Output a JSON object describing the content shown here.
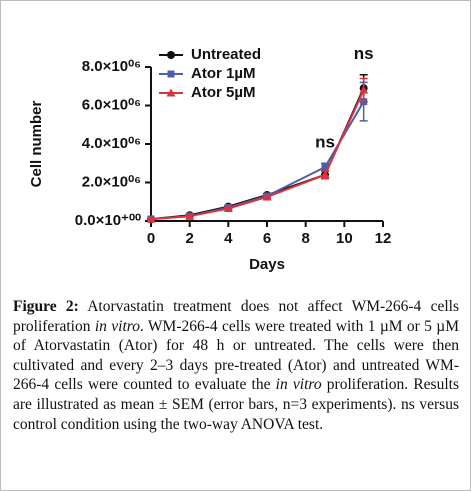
{
  "chart_data": {
    "type": "line",
    "xlabel": "Days",
    "ylabel": "Cell number",
    "x": [
      0,
      2,
      4,
      6,
      9,
      11
    ],
    "series": [
      {
        "name": "Untreated",
        "color": "#111111",
        "marker": "circle",
        "values": [
          100000,
          300000,
          750000,
          1350000,
          2400000,
          6900000
        ],
        "errors": [
          20000,
          30000,
          50000,
          60000,
          200000,
          700000
        ]
      },
      {
        "name": "Ator 1µM",
        "color": "#4a5fa8",
        "marker": "square",
        "values": [
          100000,
          250000,
          700000,
          1300000,
          2800000,
          6200000
        ],
        "errors": [
          20000,
          30000,
          50000,
          60000,
          200000,
          1000000
        ]
      },
      {
        "name": "Ator 5µM",
        "color": "#d93240",
        "marker": "triangle",
        "values": [
          100000,
          250000,
          650000,
          1250000,
          2400000,
          6800000
        ],
        "errors": [
          20000,
          30000,
          50000,
          60000,
          200000,
          600000
        ]
      }
    ],
    "xlim": [
      0,
      12
    ],
    "xticks": [
      0,
      2,
      4,
      6,
      8,
      10,
      12
    ],
    "ylim": [
      0,
      8000000
    ],
    "yticks": [
      {
        "value": 0,
        "label": "0.0×10⁺⁰⁰"
      },
      {
        "value": 2000000,
        "label": "2.0×10⁰⁶"
      },
      {
        "value": 4000000,
        "label": "4.0×10⁰⁶"
      },
      {
        "value": 6000000,
        "label": "6.0×10⁰⁶"
      },
      {
        "value": 8000000,
        "label": "8.0×10⁰⁶"
      }
    ],
    "annotations": [
      {
        "text": "ns",
        "x": 9
      },
      {
        "text": "ns",
        "x": 11
      }
    ],
    "legend": "upper-left"
  },
  "caption": {
    "label": "Figure 2:",
    "segments": [
      "Atorvastatin treatment does not affect WM-266-4 cells proliferation ",
      "in vitro",
      ". WM-266-4 cells were treated with 1 µM or 5 µM of Atorvastatin (Ator) for 48 h or untreated. The cells were then cultivated and every 2–3 days pre-treated (Ator) and untreated WM-266-4 cells were counted to evaluate the ",
      "in vitro",
      " proliferation. Results are illustrated as mean ± SEM (error bars, n=3 experiments). ns versus control condition using the two-way ANOVA test."
    ],
    "italic_segments": [
      1,
      3
    ]
  }
}
